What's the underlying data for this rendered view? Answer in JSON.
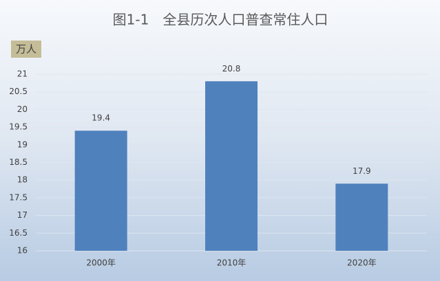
{
  "chart_data": {
    "type": "bar",
    "title": "图1-1　全县历次人口普查常住人口",
    "ylabel": "万人",
    "categories": [
      "2000年",
      "2010年",
      "2020年"
    ],
    "values": [
      19.4,
      20.8,
      17.9
    ],
    "color": "#4f81bd",
    "ylim": [
      16,
      21
    ],
    "yticks": [
      16,
      16.5,
      17,
      17.5,
      18,
      18.5,
      19,
      19.5,
      20,
      20.5,
      21
    ],
    "grid": true,
    "data_labels": true
  }
}
